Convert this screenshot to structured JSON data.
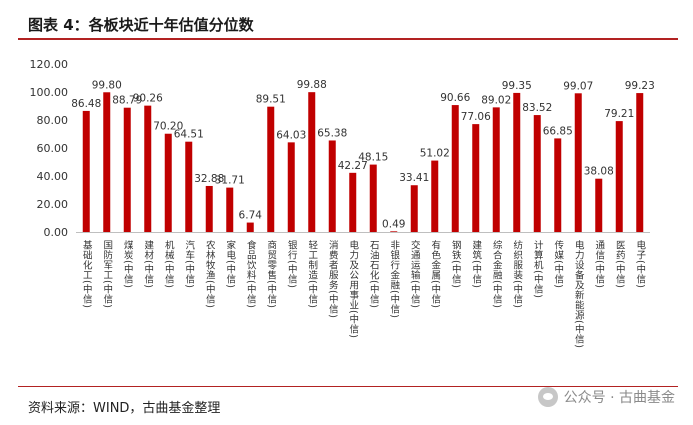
{
  "header": {
    "title": "图表 4：各板块近十年估值分位数"
  },
  "footer": {
    "source": "资料来源：WIND，古曲基金整理",
    "watermark": "公众号 · 古曲基金"
  },
  "colors": {
    "bar": "#c00000",
    "accent_line": "#b22222",
    "axis": "#bfbfbf"
  },
  "chart_data": {
    "type": "bar",
    "title": "",
    "xlabel": "",
    "ylabel": "",
    "ylim": [
      0,
      120
    ],
    "yticks": [
      "0.00",
      "20.00",
      "40.00",
      "60.00",
      "80.00",
      "100.00",
      "120.00"
    ],
    "categories": [
      "基础化工(中信)",
      "国防军工(中信)",
      "煤炭(中信)",
      "建材(中信)",
      "机械(中信)",
      "汽车(中信)",
      "农林牧渔(中信)",
      "家电(中信)",
      "食品饮料(中信)",
      "商贸零售(中信)",
      "银行(中信)",
      "轻工制造(中信)",
      "消费者服务(中信)",
      "电力及公用事业(中信)",
      "石油石化(中信)",
      "非银行金融(中信)",
      "交通运输(中信)",
      "有色金属(中信)",
      "钢铁(中信)",
      "建筑(中信)",
      "综合金融(中信)",
      "纺织服装(中信)",
      "计算机(中信)",
      "传媒(中信)",
      "电力设备及新能源(中信)",
      "通信(中信)",
      "医药(中信)",
      "电子(中信)"
    ],
    "values": [
      86.48,
      99.8,
      88.79,
      90.26,
      70.2,
      64.51,
      32.88,
      31.71,
      6.74,
      89.51,
      64.03,
      99.88,
      65.38,
      42.27,
      48.15,
      0.49,
      33.41,
      51.02,
      90.66,
      77.06,
      89.02,
      99.35,
      83.52,
      66.85,
      99.07,
      38.08,
      79.21,
      99.23
    ],
    "labels": [
      "86.48",
      "99.80",
      "88.79",
      "90.26",
      "70.20",
      "64.51",
      "32.88",
      "31.71",
      "6.74",
      "89.51",
      "64.03",
      "99.88",
      "65.38",
      "42.27",
      "48.15",
      "0.49",
      "33.41",
      "51.02",
      "90.66",
      "77.06",
      "89.02",
      "99.35",
      "83.52",
      "66.85",
      "99.07",
      "38.08",
      "79.21",
      "99.23"
    ]
  }
}
